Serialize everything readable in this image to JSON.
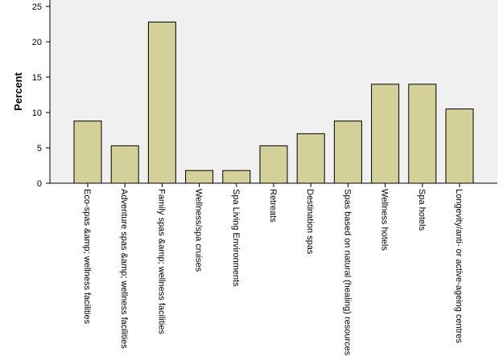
{
  "chart_data": {
    "type": "bar",
    "ylabel": "Percent",
    "xlabel": "",
    "ylim": [
      0,
      25
    ],
    "yticks": [
      0,
      5,
      10,
      15,
      20,
      25
    ],
    "grid": false,
    "legend": "none",
    "categories": [
      "Eco-spas &amp; wellness facilities",
      "Adventure spas &amp; wellness facilities",
      "Family spas &amp; wellness facilities",
      "Wellness/spa cruises",
      "Spa Living Environments",
      "Retreats",
      "Destination spas",
      "Spas based on natural (healing) resources",
      "Wellness hotels",
      "Spa hotels",
      "Longevity/anti- or active-ageing centres"
    ],
    "values": [
      8.8,
      5.3,
      22.8,
      1.8,
      1.8,
      5.3,
      7.0,
      8.8,
      14.0,
      14.0,
      10.5
    ],
    "colors": {
      "bar_fill": "#d4d09a",
      "bar_stroke": "#000000",
      "plot_background": "#f0f0f0",
      "axis": "#000000"
    }
  }
}
